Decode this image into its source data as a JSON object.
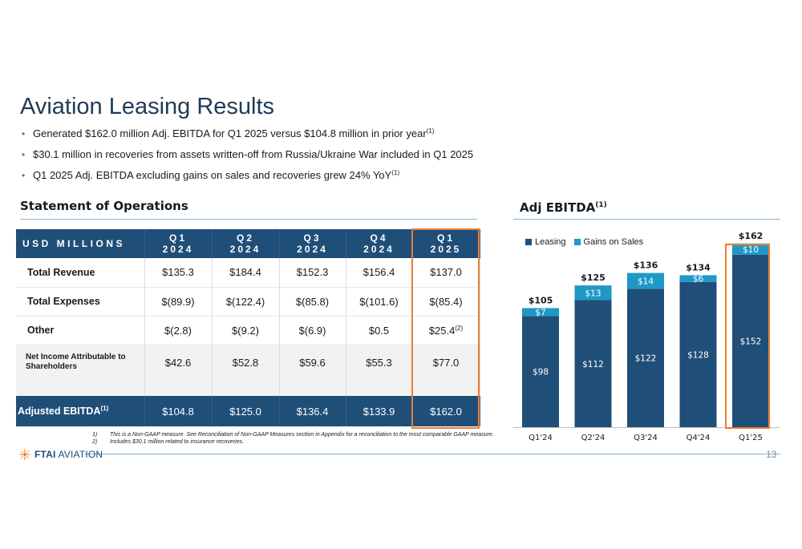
{
  "page": {
    "title": "Aviation Leasing Results",
    "bullets": [
      {
        "text": "Generated $162.0 million Adj. EBITDA for Q1 2025 versus $104.8 million in prior year",
        "sup": "(1)"
      },
      {
        "text": "$30.1 million in recoveries from assets written-off from Russia/Ukraine War included in Q1 2025",
        "sup": ""
      },
      {
        "text": " Q1 2025 Adj. EBITDA excluding gains on sales and recoveries grew 24% YoY",
        "sup": "(1)"
      }
    ],
    "page_number": "13"
  },
  "statement": {
    "title": "Statement of Operations",
    "header": {
      "usd": "USD MILLIONS",
      "cols": [
        {
          "q": "Q1",
          "y": "2024"
        },
        {
          "q": "Q2",
          "y": "2024"
        },
        {
          "q": "Q3",
          "y": "2024"
        },
        {
          "q": "Q4",
          "y": "2024"
        },
        {
          "q": "Q1",
          "y": "2025"
        }
      ]
    },
    "rows": {
      "revenue": {
        "label": "Total Revenue",
        "values": [
          "$135.3",
          "$184.4",
          "$152.3",
          "$156.4",
          "$137.0"
        ]
      },
      "expenses": {
        "label": "Total Expenses",
        "values": [
          "$(89.9)",
          "$(122.4)",
          "$(85.8)",
          "$(101.6)",
          "$(85.4)"
        ]
      },
      "other": {
        "label": "Other",
        "values": [
          "$(2.8)",
          "$(9.2)",
          "$(6.9)",
          "$0.5",
          "$25.4"
        ],
        "last_sup": "(2)"
      },
      "net_income": {
        "label": "Net Income Attributable to Shareholders",
        "values": [
          "$42.6",
          "$52.8",
          "$59.6",
          "$55.3",
          "$77.0"
        ]
      },
      "adj_ebitda": {
        "label": "Adjusted EBITDA",
        "sup": "(1)",
        "values": [
          "$104.8",
          "$125.0",
          "$136.4",
          "$133.9",
          "$162.0"
        ]
      }
    }
  },
  "footnotes": [
    {
      "n": "1)",
      "text": "This is a Non-GAAP measure. See Reconciliation of Non-GAAP Measures section in Appendix for a reconciliation to the most comparable GAAP measure."
    },
    {
      "n": "2)",
      "text": "Includes $30.1 million related to insurance recoveries."
    }
  ],
  "logo": {
    "text_a": "FTAI",
    "text_b": " AVIATION"
  },
  "chart": {
    "title": "Adj EBITDA",
    "title_sup": "(1)"
  },
  "chart_data": {
    "type": "bar",
    "stacked": true,
    "categories": [
      "Q1'24",
      "Q2'24",
      "Q3'24",
      "Q4'24",
      "Q1'25"
    ],
    "series": [
      {
        "name": "Leasing",
        "color": "#1f4e79",
        "values": [
          98,
          112,
          122,
          128,
          152
        ],
        "labels": [
          "$98",
          "$112",
          "$122",
          "$128",
          "$152"
        ]
      },
      {
        "name": "Gains on Sales",
        "color": "#1e98c5",
        "values": [
          7,
          13,
          14,
          6,
          10
        ],
        "labels": [
          "$7",
          "$13",
          "$14",
          "$6",
          "$10"
        ]
      }
    ],
    "totals": [
      105,
      125,
      136,
      134,
      162
    ],
    "total_labels": [
      "$105",
      "$125",
      "$136",
      "$134",
      "$162"
    ],
    "legend_position": "top-left",
    "grid": false,
    "highlighted_category": "Q1'25"
  },
  "colors": {
    "navy": "#1f4e79",
    "teal": "#1e98c5",
    "accent_orange": "#ed7d31",
    "rule_blue": "#7fb3d8"
  }
}
